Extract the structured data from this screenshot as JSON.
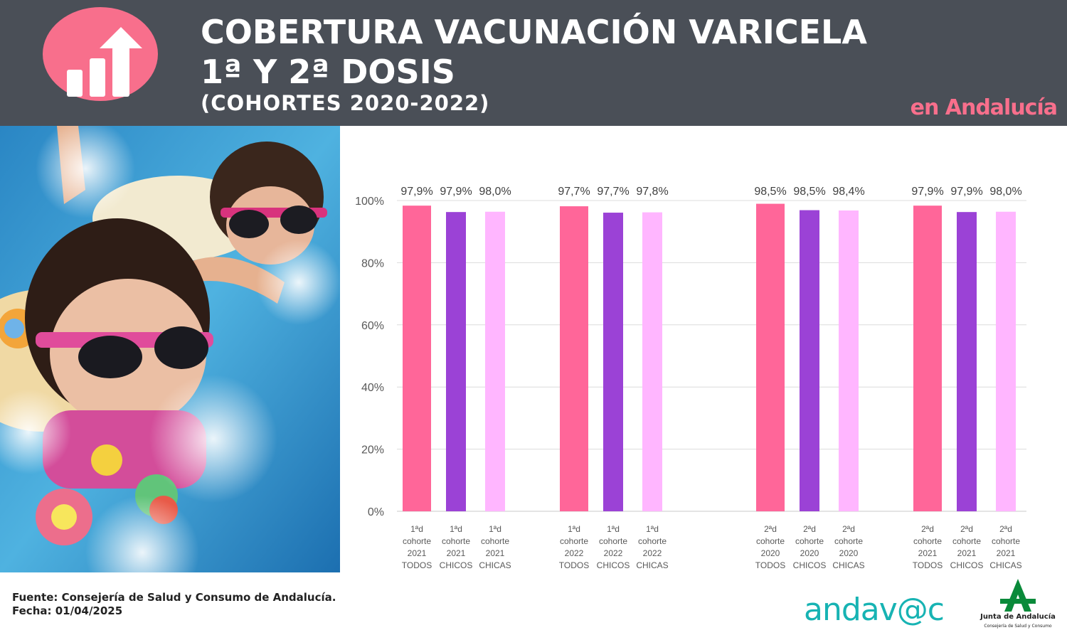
{
  "header": {
    "title_line1": "COBERTURA VACUNACIÓN VARICELA",
    "title_line2": "1ª Y 2ª DOSIS",
    "title_line3": "(COHORTES 2020-2022)",
    "region": "en Andalucía",
    "icon": "bar-chart-up-arrow-icon"
  },
  "colors": {
    "header_bg": "#4a4f57",
    "accent_pink": "#f86f8c",
    "todos": "#ff6699",
    "chicos": "#9b42d6",
    "chicas": "#ffb6ff"
  },
  "chart_data": {
    "type": "bar",
    "ylim": [
      0,
      100
    ],
    "y_ticks": [
      "0%",
      "20%",
      "40%",
      "60%",
      "80%",
      "100%"
    ],
    "grid": true,
    "groups": [
      {
        "bars": [
          {
            "label": [
              "1ªd",
              "cohorte",
              "2021",
              "TODOS"
            ],
            "value": 97.9,
            "value_label": "97,9%",
            "series": "TODOS"
          },
          {
            "label": [
              "1ªd",
              "cohorte",
              "2021",
              "CHICOS"
            ],
            "value": 97.9,
            "value_label": "97,9%",
            "series": "CHICOS"
          },
          {
            "label": [
              "1ªd",
              "cohorte",
              "2021",
              "CHICAS"
            ],
            "value": 98.0,
            "value_label": "98,0%",
            "series": "CHICAS"
          }
        ]
      },
      {
        "bars": [
          {
            "label": [
              "1ªd",
              "cohorte",
              "2022",
              "TODOS"
            ],
            "value": 97.7,
            "value_label": "97,7%",
            "series": "TODOS"
          },
          {
            "label": [
              "1ªd",
              "cohorte",
              "2022",
              "CHICOS"
            ],
            "value": 97.7,
            "value_label": "97,7%",
            "series": "CHICOS"
          },
          {
            "label": [
              "1ªd",
              "cohorte",
              "2022",
              "CHICAS"
            ],
            "value": 97.8,
            "value_label": "97,8%",
            "series": "CHICAS"
          }
        ]
      },
      {
        "bars": [
          {
            "label": [
              "2ªd",
              "cohorte",
              "2020",
              "TODOS"
            ],
            "value": 98.5,
            "value_label": "98,5%",
            "series": "TODOS"
          },
          {
            "label": [
              "2ªd",
              "cohorte",
              "2020",
              "CHICOS"
            ],
            "value": 98.5,
            "value_label": "98,5%",
            "series": "CHICOS"
          },
          {
            "label": [
              "2ªd",
              "cohorte",
              "2020",
              "CHICAS"
            ],
            "value": 98.4,
            "value_label": "98,4%",
            "series": "CHICAS"
          }
        ]
      },
      {
        "bars": [
          {
            "label": [
              "2ªd",
              "cohorte",
              "2021",
              "TODOS"
            ],
            "value": 97.9,
            "value_label": "97,9%",
            "series": "TODOS"
          },
          {
            "label": [
              "2ªd",
              "cohorte",
              "2021",
              "CHICOS"
            ],
            "value": 97.9,
            "value_label": "97,9%",
            "series": "CHICOS"
          },
          {
            "label": [
              "2ªd",
              "cohorte",
              "2021",
              "CHICAS"
            ],
            "value": 98.0,
            "value_label": "98,0%",
            "series": "CHICAS"
          }
        ]
      }
    ]
  },
  "photo": {
    "subject": "children-swimming-pool-photo"
  },
  "footer": {
    "source": "Fuente: Consejería de Salud y Consumo de Andalucía.",
    "date": "Fecha: 01/04/2025",
    "andavac_logo": "andav@c",
    "junta_name": "Junta de Andalucía",
    "junta_sub": "Consejería de Salud y Consumo"
  }
}
